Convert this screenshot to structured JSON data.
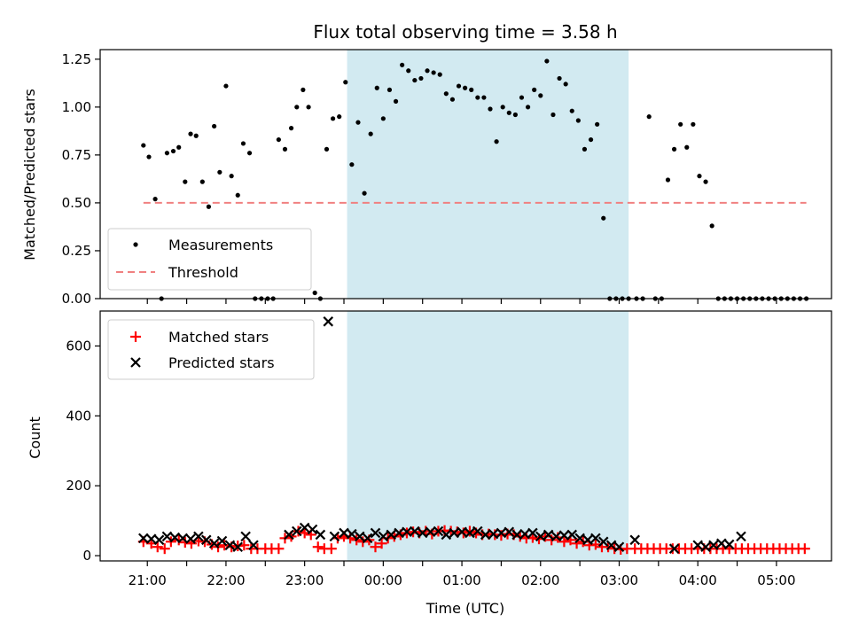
{
  "chart_data": [
    {
      "type": "scatter",
      "title": "Flux total observing time = 3.58 h",
      "xlabel": "",
      "ylabel": "Matched/Predicted stars",
      "ylim": [
        0,
        1.3
      ],
      "yticks": [
        "0.00",
        "0.25",
        "0.50",
        "0.75",
        "1.00",
        "1.25"
      ],
      "ytick_values": [
        0,
        0.25,
        0.5,
        0.75,
        1.0,
        1.25
      ],
      "xlim_hours": [
        -3.6,
        5.7
      ],
      "shaded_span_hours": [
        -0.46,
        3.12
      ],
      "shade_color": "#add8e6",
      "legend": {
        "location": "lower-left",
        "entries": [
          "Measurements",
          "Threshold"
        ]
      },
      "series": [
        {
          "name": "Measurements",
          "marker": "dot",
          "color": "#000000",
          "x_hours": [
            -3.05,
            -2.98,
            -2.9,
            -2.82,
            -2.75,
            -2.67,
            -2.6,
            -2.52,
            -2.45,
            -2.38,
            -2.3,
            -2.22,
            -2.15,
            -2.08,
            -2.0,
            -1.93,
            -1.85,
            -1.78,
            -1.7,
            -1.63,
            -1.55,
            -1.47,
            -1.4,
            -1.33,
            -1.25,
            -1.17,
            -1.1,
            -1.02,
            -0.95,
            -0.87,
            -0.8,
            -0.72,
            -0.64,
            -0.56,
            -0.48,
            -0.4,
            -0.32,
            -0.24,
            -0.16,
            -0.08,
            0.0,
            0.08,
            0.16,
            0.24,
            0.32,
            0.4,
            0.48,
            0.56,
            0.64,
            0.72,
            0.8,
            0.88,
            0.96,
            1.04,
            1.12,
            1.2,
            1.28,
            1.36,
            1.44,
            1.52,
            1.6,
            1.68,
            1.76,
            1.84,
            1.92,
            2.0,
            2.08,
            2.16,
            2.24,
            2.32,
            2.4,
            2.48,
            2.56,
            2.64,
            2.72,
            2.8,
            2.88,
            2.96,
            3.04,
            3.12,
            3.22,
            3.3,
            3.38,
            3.46,
            3.54,
            3.62,
            3.7,
            3.78,
            3.86,
            3.94,
            4.02,
            4.1,
            4.18,
            4.26,
            4.34,
            4.42,
            4.5,
            4.58,
            4.66,
            4.74,
            4.82,
            4.9,
            4.98,
            5.06,
            5.14,
            5.22,
            5.3,
            5.38
          ],
          "y": [
            0.8,
            0.74,
            0.52,
            0.0,
            0.76,
            0.77,
            0.79,
            0.61,
            0.86,
            0.85,
            0.61,
            0.48,
            0.9,
            0.66,
            1.11,
            0.64,
            0.54,
            0.81,
            0.76,
            0.0,
            0.0,
            0.0,
            0.0,
            0.83,
            0.78,
            0.89,
            1.0,
            1.09,
            1.0,
            0.03,
            0.0,
            0.78,
            0.94,
            0.95,
            1.13,
            0.7,
            0.92,
            0.55,
            0.86,
            1.1,
            0.94,
            1.09,
            1.03,
            1.22,
            1.19,
            1.14,
            1.15,
            1.19,
            1.18,
            1.17,
            1.07,
            1.04,
            1.11,
            1.1,
            1.09,
            1.05,
            1.05,
            0.99,
            0.82,
            1.0,
            0.97,
            0.96,
            1.05,
            1.0,
            1.09,
            1.06,
            1.24,
            0.96,
            1.15,
            1.12,
            0.98,
            0.93,
            0.78,
            0.83,
            0.91,
            0.42,
            0.0,
            0.0,
            0.0,
            0.0,
            0.0,
            0.0,
            0.95,
            0.0,
            0.0,
            0.62,
            0.78,
            0.91,
            0.79,
            0.91,
            0.64,
            0.61,
            0.38,
            0.0,
            0.0,
            0.0,
            0.0,
            0.0,
            0.0,
            0.0,
            0.0,
            0.0,
            0.0,
            0.0,
            0.0,
            0.0,
            0.0,
            0.0
          ]
        },
        {
          "name": "Threshold",
          "marker": "dashed-line",
          "color": "#f08080",
          "x_hours": [
            -3.05,
            5.38
          ],
          "y": [
            0.5,
            0.5
          ]
        }
      ]
    },
    {
      "type": "scatter",
      "title": "",
      "xlabel": "Time (UTC)",
      "ylabel": "Count",
      "ylim": [
        -15,
        700
      ],
      "yticks": [
        "0",
        "200",
        "400",
        "600"
      ],
      "ytick_values": [
        0,
        200,
        400,
        600
      ],
      "xticks": [
        "21:00",
        "22:00",
        "23:00",
        "00:00",
        "01:00",
        "02:00",
        "03:00",
        "04:00",
        "05:00"
      ],
      "xtick_hours": [
        -3,
        -2,
        -1,
        0,
        1,
        2,
        3,
        4,
        5
      ],
      "xlim_hours": [
        -3.6,
        5.7
      ],
      "shaded_span_hours": [
        -0.46,
        3.12
      ],
      "shade_color": "#add8e6",
      "legend": {
        "location": "upper-left",
        "entries": [
          "Matched stars",
          "Predicted stars"
        ]
      },
      "series": [
        {
          "name": "Matched stars",
          "marker": "plus",
          "color": "#ff0000",
          "x_hours": [
            -3.05,
            -2.95,
            -2.87,
            -2.78,
            -2.7,
            -2.6,
            -2.52,
            -2.44,
            -2.35,
            -2.27,
            -2.18,
            -2.1,
            -2.02,
            -1.93,
            -1.85,
            -1.77,
            -1.68,
            -1.6,
            -1.5,
            -1.42,
            -1.33,
            -1.25,
            -1.17,
            -1.08,
            -1.0,
            -0.92,
            -0.83,
            -0.75,
            -0.66,
            -0.58,
            -0.5,
            -0.42,
            -0.34,
            -0.26,
            -0.18,
            -0.1,
            -0.02,
            0.06,
            0.14,
            0.22,
            0.3,
            0.38,
            0.46,
            0.54,
            0.62,
            0.7,
            0.78,
            0.86,
            0.94,
            1.02,
            1.1,
            1.18,
            1.26,
            1.34,
            1.42,
            1.5,
            1.58,
            1.66,
            1.74,
            1.82,
            1.9,
            1.98,
            2.06,
            2.14,
            2.22,
            2.3,
            2.38,
            2.46,
            2.54,
            2.62,
            2.7,
            2.78,
            2.86,
            2.94,
            3.02,
            3.1,
            3.2,
            3.28,
            3.36,
            3.44,
            3.52,
            3.6,
            3.68,
            3.76,
            3.84,
            3.92,
            4.0,
            4.08,
            4.16,
            4.24,
            4.32,
            4.4,
            4.48,
            4.56,
            4.64,
            4.72,
            4.8,
            4.88,
            4.96,
            5.04,
            5.12,
            5.2,
            5.28,
            5.36
          ],
          "y": [
            40,
            35,
            25,
            20,
            40,
            45,
            38,
            35,
            42,
            40,
            32,
            25,
            30,
            25,
            28,
            30,
            20,
            20,
            20,
            20,
            20,
            50,
            55,
            70,
            65,
            60,
            25,
            20,
            20,
            50,
            55,
            50,
            45,
            40,
            45,
            25,
            35,
            50,
            55,
            60,
            65,
            68,
            65,
            70,
            62,
            70,
            72,
            70,
            68,
            65,
            70,
            65,
            60,
            62,
            60,
            58,
            62,
            60,
            55,
            50,
            52,
            48,
            55,
            45,
            52,
            40,
            45,
            35,
            40,
            30,
            32,
            25,
            25,
            20,
            18,
            20,
            20,
            20,
            20,
            20,
            20,
            20,
            20,
            20,
            20,
            20,
            20,
            20,
            20,
            20,
            20,
            20,
            20,
            20,
            20,
            20,
            20,
            20,
            20,
            20,
            20,
            20,
            20,
            20
          ]
        },
        {
          "name": "Predicted stars",
          "marker": "x",
          "color": "#000000",
          "x_hours": [
            -3.05,
            -2.95,
            -2.85,
            -2.75,
            -2.65,
            -2.55,
            -2.45,
            -2.35,
            -2.25,
            -2.15,
            -2.05,
            -1.95,
            -1.85,
            -1.75,
            -1.65,
            -1.2,
            -1.1,
            -1.0,
            -0.9,
            -0.8,
            -0.7,
            -0.62,
            -0.5,
            -0.4,
            -0.3,
            -0.2,
            -0.1,
            0.0,
            0.1,
            0.2,
            0.3,
            0.4,
            0.5,
            0.6,
            0.7,
            0.8,
            0.9,
            1.0,
            1.1,
            1.2,
            1.3,
            1.4,
            1.5,
            1.6,
            1.7,
            1.8,
            1.9,
            2.0,
            2.1,
            2.2,
            2.3,
            2.4,
            2.5,
            2.6,
            2.7,
            2.8,
            2.9,
            3.0,
            3.2,
            3.7,
            4.0,
            4.1,
            4.2,
            4.3,
            4.4,
            4.55
          ],
          "y": [
            50,
            48,
            45,
            55,
            52,
            50,
            48,
            55,
            45,
            35,
            42,
            30,
            25,
            55,
            30,
            60,
            70,
            80,
            75,
            60,
            670,
            55,
            65,
            62,
            55,
            50,
            65,
            55,
            60,
            65,
            68,
            70,
            65,
            68,
            70,
            60,
            65,
            68,
            65,
            70,
            60,
            62,
            65,
            68,
            60,
            62,
            65,
            55,
            60,
            55,
            58,
            60,
            50,
            45,
            50,
            40,
            30,
            25,
            45,
            20,
            30,
            25,
            30,
            35,
            32,
            55
          ]
        }
      ]
    }
  ]
}
